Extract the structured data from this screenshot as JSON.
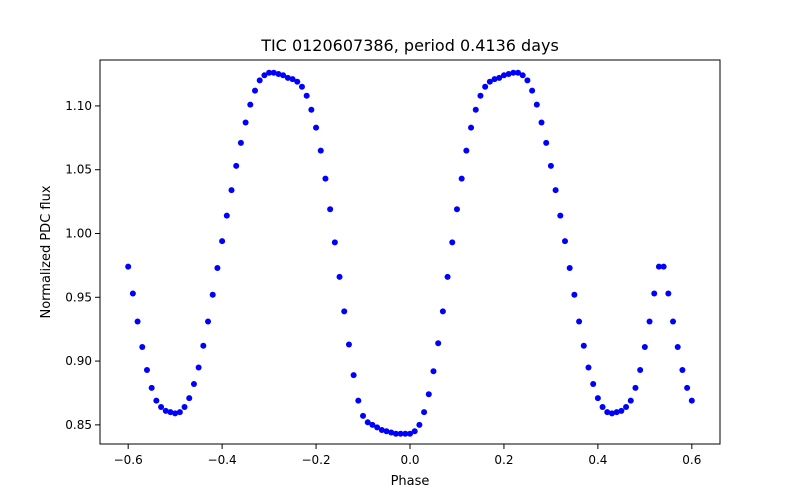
{
  "chart_data": {
    "type": "scatter",
    "title": "TIC 0120607386, period 0.4136 days",
    "xlabel": "Phase",
    "ylabel": "Normalized PDC flux",
    "xlim": [
      -0.66,
      0.66
    ],
    "ylim": [
      0.835,
      1.136
    ],
    "xticks": [
      -0.6,
      -0.4,
      -0.2,
      0.0,
      0.2,
      0.4,
      0.6
    ],
    "xtick_labels": [
      "−0.6",
      "−0.4",
      "−0.2",
      "0.0",
      "0.2",
      "0.4",
      "0.6"
    ],
    "yticks": [
      0.85,
      0.9,
      0.95,
      1.0,
      1.05,
      1.1
    ],
    "ytick_labels": [
      "0.85",
      "0.90",
      "0.95",
      "1.00",
      "1.05",
      "1.10"
    ],
    "grid": false,
    "series": [
      {
        "name": "Normalized PDC flux",
        "color": "#0000ff",
        "marker": "circle",
        "x": [
          -0.6,
          -0.59,
          -0.58,
          -0.57,
          -0.56,
          -0.55,
          -0.54,
          -0.53,
          -0.52,
          -0.51,
          -0.5,
          -0.49,
          -0.48,
          -0.47,
          -0.46,
          -0.45,
          -0.44,
          -0.43,
          -0.42,
          -0.41,
          -0.4,
          -0.39,
          -0.38,
          -0.37,
          -0.36,
          -0.35,
          -0.34,
          -0.33,
          -0.32,
          -0.31,
          -0.3,
          -0.29,
          -0.28,
          -0.27,
          -0.26,
          -0.25,
          -0.24,
          -0.23,
          -0.22,
          -0.21,
          -0.2,
          -0.19,
          -0.18,
          -0.17,
          -0.16,
          -0.15,
          -0.14,
          -0.13,
          -0.12,
          -0.11,
          -0.1,
          -0.09,
          -0.08,
          -0.07,
          -0.06,
          -0.05,
          -0.04,
          -0.03,
          -0.02,
          -0.01,
          0.0,
          0.01,
          0.02,
          0.03,
          0.04,
          0.05,
          0.06,
          0.07,
          0.08,
          0.09,
          0.1,
          0.11,
          0.12,
          0.13,
          0.14,
          0.15,
          0.16,
          0.17,
          0.18,
          0.19,
          0.2,
          0.21,
          0.22,
          0.23,
          0.24,
          0.25,
          0.26,
          0.27,
          0.28,
          0.29,
          0.3,
          0.31,
          0.32,
          0.33,
          0.34,
          0.35,
          0.36,
          0.37,
          0.38,
          0.39,
          0.4,
          0.41,
          0.42,
          0.43,
          0.44,
          0.45,
          0.46,
          0.47,
          0.48,
          0.49,
          0.5,
          0.51,
          0.52,
          0.53,
          0.54,
          0.55,
          0.56,
          0.57,
          0.58,
          0.59,
          0.6
        ],
        "y": [
          0.974,
          0.953,
          0.931,
          0.911,
          0.893,
          0.879,
          0.869,
          0.864,
          0.861,
          0.86,
          0.859,
          0.86,
          0.864,
          0.871,
          0.882,
          0.895,
          0.912,
          0.931,
          0.952,
          0.973,
          0.994,
          1.014,
          1.034,
          1.053,
          1.071,
          1.087,
          1.101,
          1.112,
          1.12,
          1.124,
          1.126,
          1.126,
          1.125,
          1.124,
          1.122,
          1.121,
          1.119,
          1.115,
          1.108,
          1.097,
          1.083,
          1.065,
          1.043,
          1.019,
          0.993,
          0.966,
          0.939,
          0.913,
          0.889,
          0.869,
          0.857,
          0.852,
          0.85,
          0.848,
          0.846,
          0.845,
          0.844,
          0.843,
          0.843,
          0.843,
          0.843,
          0.845,
          0.85,
          0.86,
          0.874,
          0.892,
          0.914,
          0.939,
          0.966,
          0.993,
          1.019,
          1.043,
          1.065,
          1.083,
          1.097,
          1.108,
          1.115,
          1.119,
          1.121,
          1.122,
          1.124,
          1.125,
          1.126,
          1.126,
          1.124,
          1.12,
          1.112,
          1.101,
          1.087,
          1.071,
          1.053,
          1.034,
          1.014,
          0.994,
          0.973,
          0.952,
          0.931,
          0.912,
          0.895,
          0.882,
          0.871,
          0.864,
          0.86,
          0.859,
          0.86,
          0.861,
          0.864,
          0.869,
          0.879,
          0.893,
          0.911,
          0.931,
          0.953,
          0.974,
          0.974,
          0.953,
          0.931,
          0.911,
          0.893,
          0.879,
          0.869
        ]
      }
    ]
  }
}
